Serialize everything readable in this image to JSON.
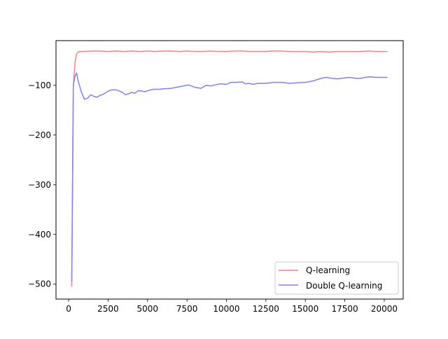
{
  "chart_data": {
    "type": "line",
    "title": "",
    "xlabel": "",
    "ylabel": "",
    "xlim": [
      -800,
      21200
    ],
    "ylim": [
      -530,
      -10
    ],
    "xticks": [
      0,
      2500,
      5000,
      7500,
      10000,
      12500,
      15000,
      17500,
      20000
    ],
    "xtick_labels": [
      "0",
      "2500",
      "5000",
      "7500",
      "10000",
      "12500",
      "15000",
      "17500",
      "20000"
    ],
    "yticks": [
      -500,
      -400,
      -300,
      -200,
      -100
    ],
    "ytick_labels": [
      "−500",
      "−400",
      "−300",
      "−200",
      "−100"
    ],
    "grid": false,
    "legend_position": "lower-right",
    "series": [
      {
        "name": "Q-learning",
        "color": "#ff7f7f",
        "x": [
          200,
          300,
          400,
          500,
          600,
          800,
          1000,
          1500,
          2000,
          2500,
          3000,
          3500,
          4000,
          4500,
          5000,
          5500,
          6000,
          6500,
          7000,
          7500,
          8000,
          8500,
          9000,
          9500,
          10000,
          10500,
          11000,
          11500,
          12000,
          12500,
          13000,
          13500,
          14000,
          14500,
          15000,
          15500,
          16000,
          16500,
          17000,
          17500,
          18000,
          18500,
          19000,
          19500,
          20000,
          20200
        ],
        "y": [
          -505,
          -100,
          -55,
          -37,
          -33,
          -32,
          -32,
          -31,
          -31,
          -32,
          -31,
          -32,
          -31,
          -32,
          -31,
          -32,
          -31,
          -31,
          -32,
          -31,
          -32,
          -32,
          -31,
          -32,
          -32,
          -31,
          -31,
          -32,
          -32,
          -32,
          -31,
          -31,
          -32,
          -32,
          -32,
          -33,
          -32,
          -33,
          -32,
          -32,
          -32,
          -32,
          -31,
          -32,
          -32,
          -32
        ]
      },
      {
        "name": "Double Q-learning",
        "color": "#7f7fff",
        "x": [
          200,
          300,
          400,
          500,
          600,
          800,
          1000,
          1200,
          1400,
          1600,
          1800,
          2000,
          2200,
          2400,
          2600,
          2800,
          3000,
          3200,
          3400,
          3600,
          3800,
          4000,
          4200,
          4400,
          4600,
          4800,
          5000,
          5200,
          5400,
          5600,
          5800,
          6000,
          6500,
          7000,
          7300,
          7600,
          8000,
          8400,
          8700,
          9000,
          9300,
          9600,
          10000,
          10300,
          10600,
          11000,
          11200,
          11400,
          11700,
          12000,
          12500,
          13000,
          13500,
          14000,
          14500,
          15000,
          15500,
          16000,
          16300,
          16700,
          17000,
          17500,
          17800,
          18200,
          18500,
          18800,
          19100,
          19500,
          20000,
          20200
        ],
        "y": [
          -495,
          -100,
          -82,
          -75,
          -90,
          -113,
          -128,
          -126,
          -119,
          -122,
          -124,
          -120,
          -118,
          -114,
          -110,
          -109,
          -109,
          -111,
          -114,
          -119,
          -117,
          -114,
          -116,
          -111,
          -111,
          -113,
          -111,
          -109,
          -108,
          -108,
          -108,
          -107,
          -106,
          -103,
          -101,
          -99,
          -104,
          -106,
          -100,
          -101,
          -99,
          -97,
          -98,
          -94,
          -94,
          -93,
          -97,
          -96,
          -98,
          -96,
          -96,
          -94,
          -94,
          -96,
          -95,
          -94,
          -91,
          -86,
          -84,
          -86,
          -87,
          -85,
          -84,
          -86,
          -86,
          -84,
          -83,
          -84,
          -84,
          -84
        ]
      }
    ]
  }
}
